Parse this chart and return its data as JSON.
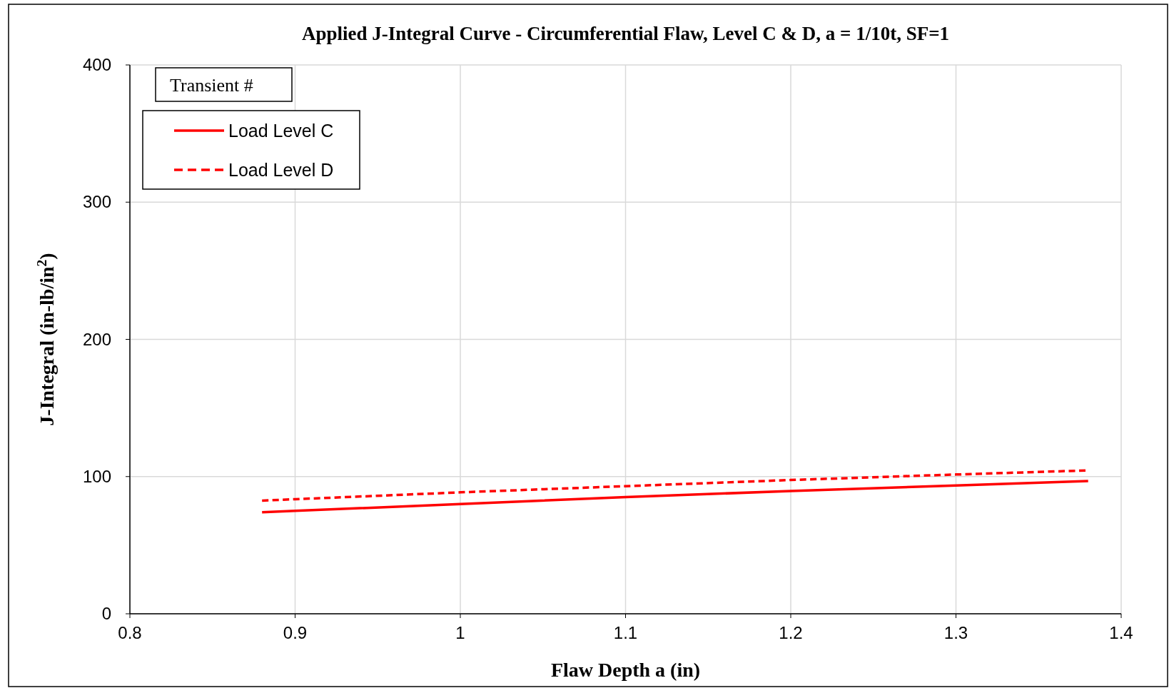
{
  "chart_data": {
    "type": "line",
    "title": "Applied J-Integral Curve - Circumferential Flaw, Level C & D, a = 1/10t, SF=1",
    "xlabel": "Flaw Depth a (in)",
    "ylabel": "J-Integral (in-lb/in$^{2}$)",
    "legend_title": "Transient #",
    "legend": "top left",
    "grid": true,
    "xlim": [
      0.8,
      1.4
    ],
    "xticks": [
      0.8,
      0.9,
      1,
      1.1,
      1.2,
      1.3,
      1.4
    ],
    "ylim": [
      0,
      400
    ],
    "yticks": [
      0,
      100,
      200,
      300,
      400
    ],
    "x": [
      0.88,
      0.9,
      1.0,
      1.1,
      1.2,
      1.3,
      1.38
    ],
    "series": [
      {
        "name": "Load Level C",
        "color": "#ff0000",
        "line_style": "solid",
        "values": [
          74,
          75,
          80,
          85,
          89.5,
          93.5,
          96.7
        ]
      },
      {
        "name": "Load Level D",
        "color": "#ff0000",
        "line_style": "dashed",
        "values": [
          82.5,
          83.5,
          88.5,
          93,
          97.5,
          101.5,
          104.5
        ]
      }
    ]
  }
}
